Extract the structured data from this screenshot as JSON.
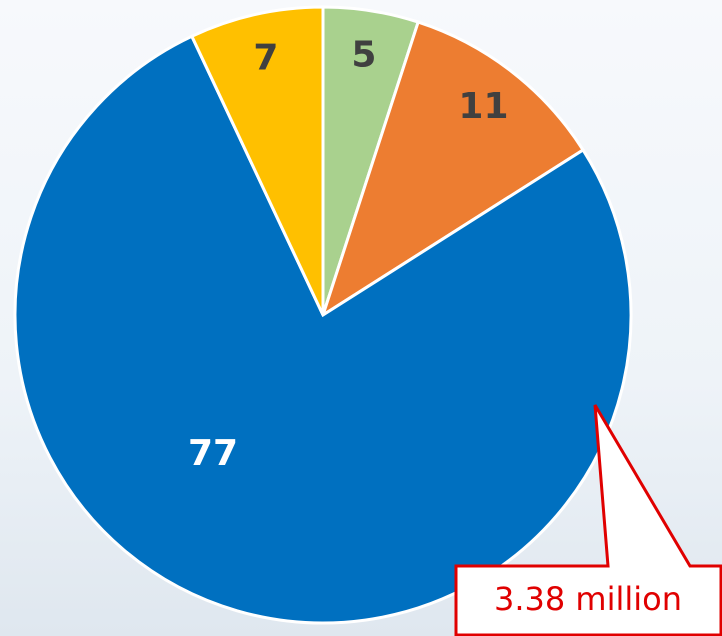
{
  "chart_data": {
    "type": "pie",
    "values": [
      5,
      11,
      77,
      7
    ],
    "colors": [
      "#a9d18e",
      "#ed7d31",
      "#0070c0",
      "#ffc000"
    ],
    "label_colors": [
      "#404040",
      "#404040",
      "#ffffff",
      "#404040"
    ],
    "annotation": "3.38 million"
  }
}
